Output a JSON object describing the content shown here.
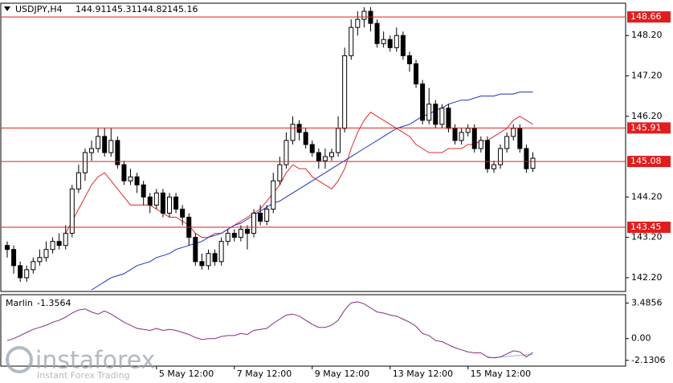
{
  "chart_data": {
    "type": "candlestick",
    "title": "USDJPY,H4",
    "categories": [
      null,
      null,
      null,
      null,
      null,
      null,
      null,
      null,
      null,
      null,
      null,
      null,
      null,
      null,
      null,
      null,
      null,
      null,
      null,
      null,
      null,
      null,
      null,
      "5 May 12:00",
      null,
      null,
      null,
      null,
      null,
      null,
      null,
      null,
      null,
      null,
      null,
      "7 May 12:00",
      null,
      null,
      null,
      null,
      null,
      null,
      null,
      null,
      null,
      null,
      null,
      "9 May 12:00",
      null,
      null,
      null,
      null,
      null,
      null,
      null,
      null,
      null,
      null,
      null,
      "13 May 12:00",
      null,
      null,
      null,
      null,
      null,
      null,
      null,
      null,
      null,
      null,
      null,
      "15 May 12:00",
      null,
      null,
      null,
      null,
      null,
      null,
      null,
      null,
      null,
      null
    ],
    "ohlc": [
      [
        143.0,
        143.1,
        142.7,
        142.9
      ],
      [
        142.9,
        143.0,
        142.3,
        142.5
      ],
      [
        142.5,
        142.6,
        142.1,
        142.2
      ],
      [
        142.2,
        142.5,
        142.1,
        142.4
      ],
      [
        142.4,
        142.7,
        142.3,
        142.6
      ],
      [
        142.6,
        142.9,
        142.5,
        142.7
      ],
      [
        142.7,
        143.1,
        142.6,
        142.9
      ],
      [
        142.9,
        143.2,
        142.8,
        143.1
      ],
      [
        143.1,
        143.3,
        142.9,
        143.0
      ],
      [
        143.0,
        143.5,
        142.9,
        143.3
      ],
      [
        143.3,
        144.5,
        143.2,
        144.4
      ],
      [
        144.4,
        145.0,
        144.3,
        144.8
      ],
      [
        144.8,
        145.4,
        144.6,
        145.3
      ],
      [
        145.3,
        145.6,
        145.1,
        145.4
      ],
      [
        145.4,
        145.9,
        145.3,
        145.7
      ],
      [
        145.7,
        145.9,
        145.2,
        145.3
      ],
      [
        145.3,
        145.9,
        145.2,
        145.6
      ],
      [
        145.6,
        145.7,
        144.9,
        145.0
      ],
      [
        145.0,
        145.1,
        144.5,
        144.6
      ],
      [
        144.6,
        144.9,
        144.5,
        144.7
      ],
      [
        144.7,
        144.8,
        144.3,
        144.5
      ],
      [
        144.5,
        144.6,
        144.0,
        144.2
      ],
      [
        144.2,
        144.3,
        143.8,
        144.0
      ],
      [
        144.0,
        144.4,
        143.9,
        144.3
      ],
      [
        144.3,
        144.4,
        143.7,
        143.8
      ],
      [
        143.8,
        144.3,
        143.7,
        144.2
      ],
      [
        144.2,
        144.3,
        143.8,
        143.9
      ],
      [
        143.9,
        144.0,
        143.5,
        143.7
      ],
      [
        143.7,
        143.8,
        143.0,
        143.2
      ],
      [
        143.2,
        143.3,
        142.5,
        142.6
      ],
      [
        142.6,
        142.8,
        142.4,
        142.5
      ],
      [
        142.5,
        142.9,
        142.4,
        142.8
      ],
      [
        142.8,
        142.9,
        142.5,
        142.6
      ],
      [
        142.6,
        143.2,
        142.5,
        143.1
      ],
      [
        143.1,
        143.4,
        143.0,
        143.3
      ],
      [
        143.3,
        143.4,
        143.1,
        143.2
      ],
      [
        143.2,
        143.5,
        143.1,
        143.4
      ],
      [
        143.4,
        143.5,
        142.9,
        143.3
      ],
      [
        143.3,
        143.9,
        143.2,
        143.8
      ],
      [
        143.8,
        144.0,
        143.5,
        143.6
      ],
      [
        143.6,
        144.0,
        143.5,
        143.9
      ],
      [
        143.9,
        144.8,
        143.8,
        144.6
      ],
      [
        144.6,
        145.2,
        144.5,
        145.0
      ],
      [
        145.0,
        145.8,
        144.9,
        145.6
      ],
      [
        145.6,
        146.2,
        145.5,
        146.0
      ],
      [
        146.0,
        146.1,
        145.6,
        145.8
      ],
      [
        145.8,
        145.9,
        145.4,
        145.5
      ],
      [
        145.5,
        145.6,
        145.2,
        145.3
      ],
      [
        145.3,
        145.4,
        144.9,
        145.1
      ],
      [
        145.1,
        145.4,
        144.9,
        145.2
      ],
      [
        145.2,
        145.4,
        145.1,
        145.3
      ],
      [
        145.3,
        146.2,
        145.2,
        145.9
      ],
      [
        145.9,
        147.9,
        145.8,
        147.7
      ],
      [
        147.7,
        148.6,
        147.6,
        148.4
      ],
      [
        148.4,
        148.8,
        148.2,
        148.6
      ],
      [
        148.6,
        148.9,
        148.4,
        148.8
      ],
      [
        148.8,
        148.9,
        148.3,
        148.5
      ],
      [
        148.5,
        148.6,
        147.9,
        148.0
      ],
      [
        148.0,
        148.3,
        147.9,
        148.1
      ],
      [
        148.1,
        148.2,
        147.8,
        147.9
      ],
      [
        147.9,
        148.4,
        147.8,
        148.2
      ],
      [
        148.2,
        148.3,
        147.6,
        147.7
      ],
      [
        147.7,
        147.8,
        147.3,
        147.5
      ],
      [
        147.5,
        147.6,
        146.9,
        147.0
      ],
      [
        147.0,
        147.1,
        146.0,
        146.1
      ],
      [
        146.1,
        146.9,
        146.0,
        146.5
      ],
      [
        146.5,
        146.6,
        145.9,
        146.0
      ],
      [
        146.0,
        146.5,
        145.9,
        146.4
      ],
      [
        146.4,
        146.5,
        145.8,
        145.9
      ],
      [
        145.9,
        146.0,
        145.5,
        145.6
      ],
      [
        145.6,
        145.9,
        145.5,
        145.8
      ],
      [
        145.8,
        146.0,
        145.7,
        145.9
      ],
      [
        145.9,
        146.0,
        145.3,
        145.4
      ],
      [
        145.4,
        145.7,
        145.3,
        145.6
      ],
      [
        145.6,
        145.7,
        144.8,
        144.9
      ],
      [
        144.9,
        145.1,
        144.8,
        145.0
      ],
      [
        145.0,
        145.5,
        144.9,
        145.4
      ],
      [
        145.4,
        145.8,
        145.3,
        145.7
      ],
      [
        145.7,
        146.0,
        145.6,
        145.9
      ],
      [
        145.9,
        146.0,
        145.3,
        145.4
      ],
      [
        145.4,
        145.5,
        144.8,
        144.9
      ],
      [
        144.91,
        145.31,
        144.82,
        145.16
      ]
    ],
    "series": [
      {
        "color": "#e02828",
        "values": [
          null,
          null,
          null,
          null,
          null,
          null,
          null,
          null,
          null,
          143.3,
          143.6,
          143.9,
          144.2,
          144.5,
          144.7,
          144.8,
          144.6,
          144.4,
          144.2,
          144.0,
          144.0,
          144.0,
          144.0,
          143.9,
          143.8,
          143.7,
          143.7,
          143.6,
          143.5,
          143.3,
          143.2,
          143.2,
          143.3,
          143.3,
          143.4,
          143.5,
          143.6,
          143.7,
          143.8,
          143.9,
          144.1,
          144.3,
          144.5,
          144.8,
          145.0,
          144.9,
          144.9,
          144.7,
          144.6,
          144.5,
          144.4,
          144.6,
          144.9,
          145.4,
          145.8,
          146.1,
          146.3,
          146.2,
          146.1,
          146.0,
          145.9,
          145.8,
          145.7,
          145.5,
          145.4,
          145.3,
          145.3,
          145.3,
          145.4,
          145.4,
          145.4,
          145.5,
          145.5,
          145.6,
          145.6,
          145.7,
          145.8,
          145.9,
          146.1,
          146.2,
          146.1,
          146.0
        ]
      },
      {
        "color": "#1c2fc4",
        "values": [
          null,
          null,
          null,
          null,
          null,
          null,
          null,
          null,
          null,
          null,
          null,
          null,
          null,
          141.9,
          142.0,
          142.1,
          142.2,
          142.25,
          142.3,
          142.4,
          142.5,
          142.55,
          142.6,
          142.7,
          142.75,
          142.8,
          142.9,
          142.95,
          143.0,
          143.05,
          143.1,
          143.2,
          143.25,
          143.3,
          143.4,
          143.5,
          143.55,
          143.65,
          143.75,
          143.85,
          143.95,
          144.05,
          144.1,
          144.2,
          144.3,
          144.4,
          144.5,
          144.6,
          144.7,
          144.8,
          144.9,
          145.0,
          145.1,
          145.2,
          145.3,
          145.4,
          145.5,
          145.6,
          145.7,
          145.8,
          145.9,
          145.95,
          146.0,
          146.1,
          146.2,
          146.25,
          146.35,
          146.4,
          146.5,
          146.55,
          146.6,
          146.6,
          146.65,
          146.7,
          146.7,
          146.7,
          146.75,
          146.75,
          146.75,
          146.8,
          146.8,
          146.8
        ]
      }
    ],
    "levels": [
      148.66,
      145.91,
      145.08,
      143.45
    ],
    "level_color": "#e01e1e",
    "ylim": [
      141.86,
      149.0
    ],
    "yticks": [
      {
        "value": 142.2,
        "label": "142.20"
      },
      {
        "value": 143.2,
        "label": "143.20"
      },
      {
        "value": 144.2,
        "label": "144.20"
      },
      {
        "value": 146.2,
        "label": "146.20"
      },
      {
        "value": 147.2,
        "label": "147.20"
      },
      {
        "value": 148.2,
        "label": "148.20"
      }
    ],
    "indicator": {
      "name": "Marlin",
      "color": "#8a2a86",
      "values": [
        -0.2,
        0.0,
        0.3,
        0.6,
        0.9,
        1.1,
        1.3,
        1.6,
        1.8,
        2.1,
        2.5,
        2.8,
        2.9,
        2.6,
        2.4,
        2.7,
        2.4,
        2.0,
        1.6,
        1.3,
        1.0,
        0.9,
        0.8,
        1.0,
        0.8,
        0.9,
        0.8,
        0.6,
        0.4,
        0.1,
        -0.1,
        0.0,
        0.0,
        0.2,
        0.3,
        0.3,
        0.5,
        0.4,
        0.8,
        0.9,
        1.0,
        1.5,
        1.9,
        2.3,
        2.4,
        2.2,
        1.8,
        1.4,
        1.1,
        1.1,
        1.3,
        1.8,
        2.8,
        3.5,
        3.6,
        3.4,
        3.0,
        2.6,
        2.5,
        2.3,
        2.2,
        1.9,
        1.6,
        1.2,
        0.5,
        0.3,
        -0.2,
        -0.3,
        -0.6,
        -0.9,
        -1.1,
        -1.3,
        -1.4,
        -1.4,
        -1.8,
        -1.9,
        -1.8,
        -1.5,
        -1.2,
        -1.3,
        -1.8,
        -1.3564
      ],
      "signal_color": "#8fb8d8",
      "signal": [
        null,
        null,
        null,
        null,
        null,
        null,
        null,
        null,
        null,
        null,
        null,
        null,
        null,
        null,
        null,
        null,
        null,
        null,
        null,
        null,
        null,
        null,
        null,
        null,
        null,
        null,
        null,
        null,
        null,
        null,
        null,
        null,
        null,
        null,
        null,
        null,
        null,
        null,
        null,
        null,
        null,
        null,
        null,
        null,
        null,
        null,
        null,
        null,
        null,
        null,
        null,
        null,
        null,
        null,
        null,
        null,
        null,
        null,
        null,
        null,
        null,
        null,
        null,
        null,
        null,
        null,
        null,
        null,
        null,
        null,
        null,
        null,
        null,
        null,
        -1.9,
        -1.85,
        -1.8,
        -1.75,
        -1.7,
        -1.65,
        -1.6,
        -1.55
      ],
      "ylim": [
        -2.7,
        4.3
      ],
      "yticks": [
        {
          "value": 3.4856,
          "label": "3.4856"
        },
        {
          "value": 0,
          "label": "0.00"
        },
        {
          "value": -2.1306,
          "label": "-2.1306"
        }
      ]
    },
    "watermark": {
      "brand": "instaforex",
      "tagline": "Instant Forex Trading"
    }
  }
}
